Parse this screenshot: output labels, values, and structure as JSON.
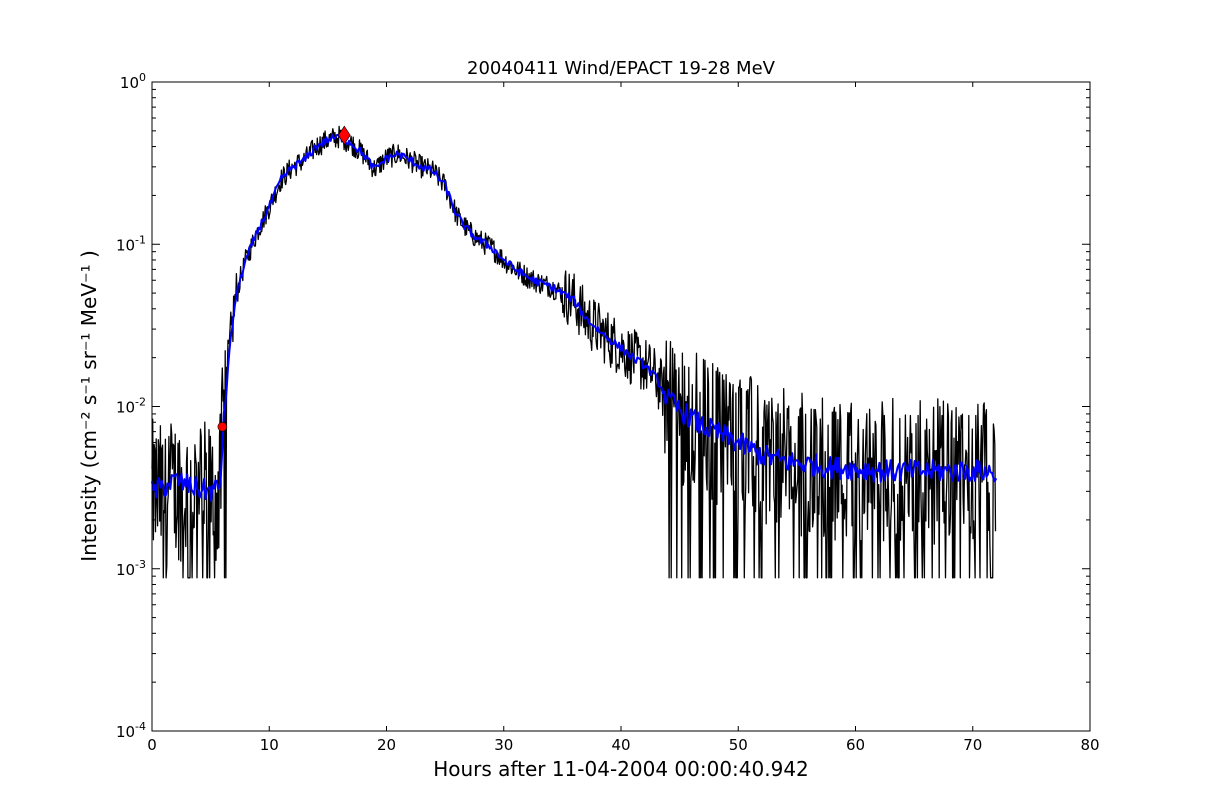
{
  "chart_data": {
    "type": "line",
    "title": "20040411 Wind/EPACT 19-28 MeV",
    "xlabel": "Hours after 11-04-2004 00:00:40.942",
    "ylabel": "Intensity (cm⁻² s⁻¹ sr⁻¹ MeV⁻¹ )",
    "xlim": [
      0,
      80
    ],
    "ylim": [
      0.0001,
      1
    ],
    "yscale": "log",
    "grid": false,
    "xticks": [
      0,
      10,
      20,
      30,
      40,
      50,
      60,
      70,
      80
    ],
    "xtick_labels": [
      "0",
      "10",
      "20",
      "30",
      "40",
      "50",
      "60",
      "70",
      "80"
    ],
    "yticks": [
      0.0001,
      0.001,
      0.01,
      0.1,
      1
    ],
    "ytick_labels": [
      {
        "base": "10",
        "exp": "-4"
      },
      {
        "base": "10",
        "exp": "-3"
      },
      {
        "base": "10",
        "exp": "-2"
      },
      {
        "base": "10",
        "exp": "-1"
      },
      {
        "base": "10",
        "exp": "0"
      }
    ],
    "series": [
      {
        "color": "#000000",
        "style": "raw",
        "points": [
          [
            0,
            0.003
          ],
          [
            1,
            0.0028
          ],
          [
            2,
            0.0032
          ],
          [
            3,
            0.003
          ],
          [
            4,
            0.003
          ],
          [
            5,
            0.0028
          ],
          [
            5.8,
            0.003
          ],
          [
            6,
            0.0065
          ],
          [
            6.5,
            0.018
          ],
          [
            7,
            0.04
          ],
          [
            7.5,
            0.06
          ],
          [
            8,
            0.08
          ],
          [
            9,
            0.12
          ],
          [
            10,
            0.17
          ],
          [
            11,
            0.25
          ],
          [
            12,
            0.3
          ],
          [
            13,
            0.33
          ],
          [
            14,
            0.4
          ],
          [
            15,
            0.44
          ],
          [
            16,
            0.46
          ],
          [
            17,
            0.42
          ],
          [
            18,
            0.36
          ],
          [
            19,
            0.29
          ],
          [
            20,
            0.34
          ],
          [
            21,
            0.36
          ],
          [
            22,
            0.33
          ],
          [
            23,
            0.3
          ],
          [
            24,
            0.28
          ],
          [
            25,
            0.23
          ],
          [
            26,
            0.15
          ],
          [
            27,
            0.12
          ],
          [
            28,
            0.105
          ],
          [
            29,
            0.095
          ],
          [
            30,
            0.08
          ],
          [
            31,
            0.07
          ],
          [
            32,
            0.063
          ],
          [
            33,
            0.058
          ],
          [
            34,
            0.055
          ],
          [
            35,
            0.05
          ],
          [
            36,
            0.045
          ],
          [
            37,
            0.035
          ],
          [
            38,
            0.03
          ],
          [
            39,
            0.026
          ],
          [
            40,
            0.023
          ],
          [
            41,
            0.02
          ],
          [
            42,
            0.018
          ],
          [
            43,
            0.015
          ],
          [
            44,
            0.011
          ],
          [
            45,
            0.0095
          ],
          [
            46,
            0.0085
          ],
          [
            47,
            0.0075
          ],
          [
            48,
            0.007
          ],
          [
            49,
            0.0065
          ],
          [
            50,
            0.006
          ],
          [
            51,
            0.0055
          ],
          [
            52,
            0.005
          ],
          [
            53,
            0.0048
          ],
          [
            54,
            0.0046
          ],
          [
            55,
            0.0045
          ],
          [
            56,
            0.0044
          ],
          [
            57,
            0.0043
          ],
          [
            58,
            0.0042
          ],
          [
            59,
            0.0042
          ],
          [
            60,
            0.0041
          ],
          [
            61,
            0.0041
          ],
          [
            62,
            0.004
          ],
          [
            63,
            0.004
          ],
          [
            64,
            0.004
          ],
          [
            65,
            0.004
          ],
          [
            66,
            0.004
          ],
          [
            67,
            0.004
          ],
          [
            68,
            0.004
          ],
          [
            69,
            0.004
          ],
          [
            70,
            0.004
          ],
          [
            71,
            0.004
          ],
          [
            72,
            0.0038
          ]
        ],
        "noise_floor": 0.00088
      },
      {
        "color": "#0000ff",
        "style": "smoothed",
        "points": [
          [
            0,
            0.003
          ],
          [
            1,
            0.0032
          ],
          [
            2,
            0.0035
          ],
          [
            3,
            0.0033
          ],
          [
            4,
            0.0031
          ],
          [
            5,
            0.003
          ],
          [
            5.8,
            0.0032
          ],
          [
            6,
            0.006
          ],
          [
            6.5,
            0.018
          ],
          [
            7,
            0.04
          ],
          [
            7.5,
            0.06
          ],
          [
            8,
            0.08
          ],
          [
            9,
            0.12
          ],
          [
            10,
            0.17
          ],
          [
            11,
            0.25
          ],
          [
            12,
            0.3
          ],
          [
            13,
            0.33
          ],
          [
            14,
            0.4
          ],
          [
            15,
            0.44
          ],
          [
            16,
            0.46
          ],
          [
            17,
            0.42
          ],
          [
            18,
            0.36
          ],
          [
            19,
            0.29
          ],
          [
            20,
            0.34
          ],
          [
            21,
            0.36
          ],
          [
            22,
            0.33
          ],
          [
            23,
            0.3
          ],
          [
            24,
            0.28
          ],
          [
            25,
            0.23
          ],
          [
            26,
            0.15
          ],
          [
            27,
            0.12
          ],
          [
            28,
            0.105
          ],
          [
            29,
            0.095
          ],
          [
            30,
            0.08
          ],
          [
            31,
            0.07
          ],
          [
            32,
            0.063
          ],
          [
            33,
            0.058
          ],
          [
            34,
            0.055
          ],
          [
            35,
            0.05
          ],
          [
            36,
            0.045
          ],
          [
            37,
            0.035
          ],
          [
            38,
            0.03
          ],
          [
            39,
            0.026
          ],
          [
            40,
            0.023
          ],
          [
            41,
            0.02
          ],
          [
            42,
            0.018
          ],
          [
            43,
            0.015
          ],
          [
            44,
            0.011
          ],
          [
            45,
            0.0095
          ],
          [
            46,
            0.0085
          ],
          [
            47,
            0.0075
          ],
          [
            48,
            0.007
          ],
          [
            49,
            0.0065
          ],
          [
            50,
            0.006
          ],
          [
            51,
            0.0055
          ],
          [
            52,
            0.005
          ],
          [
            53,
            0.0048
          ],
          [
            54,
            0.0046
          ],
          [
            55,
            0.0045
          ],
          [
            56,
            0.0044
          ],
          [
            57,
            0.0043
          ],
          [
            58,
            0.0042
          ],
          [
            59,
            0.0042
          ],
          [
            60,
            0.0041
          ],
          [
            61,
            0.0041
          ],
          [
            62,
            0.004
          ],
          [
            63,
            0.004
          ],
          [
            64,
            0.004
          ],
          [
            65,
            0.004
          ],
          [
            66,
            0.004
          ],
          [
            67,
            0.004
          ],
          [
            68,
            0.004
          ],
          [
            69,
            0.004
          ],
          [
            70,
            0.004
          ],
          [
            71,
            0.004
          ],
          [
            72,
            0.0038
          ]
        ]
      }
    ],
    "markers": [
      {
        "x": 6.0,
        "y": 0.0075,
        "shape": "circle",
        "color": "#ff0000"
      },
      {
        "x": 16.4,
        "y": 0.47,
        "shape": "diamond",
        "color": "#ff0000"
      }
    ]
  }
}
